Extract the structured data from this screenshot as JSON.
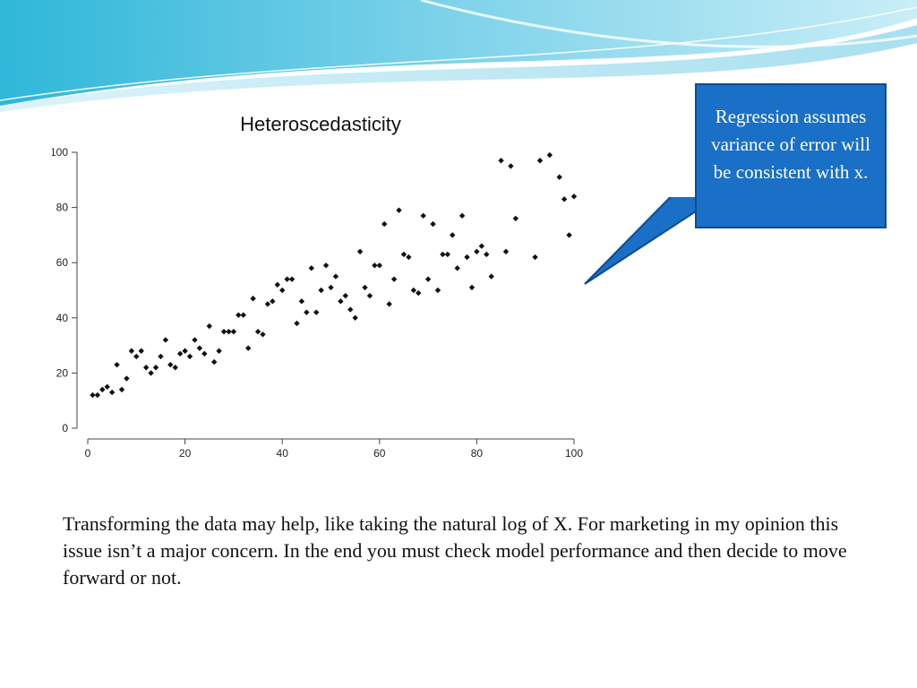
{
  "callout": {
    "text": "Regression assumes variance of error will be consistent with x.",
    "background": "#1a6fc6"
  },
  "body_text": "Transforming the data may help, like taking the natural log of X.  For marketing in my opinion this issue isn’t a major concern.  In the end you must check model performance and then decide to move forward or not.",
  "chart_data": {
    "type": "scatter",
    "title": "Heteroscedasticity",
    "xlabel": "",
    "ylabel": "",
    "xlim": [
      0,
      100
    ],
    "ylim": [
      0,
      100
    ],
    "x_ticks": [
      0,
      20,
      40,
      60,
      80,
      100
    ],
    "y_ticks": [
      0,
      20,
      40,
      60,
      80,
      100
    ],
    "grid": false,
    "marker_color": "#111111",
    "points": [
      [
        1,
        12
      ],
      [
        2,
        12
      ],
      [
        3,
        14
      ],
      [
        4,
        15
      ],
      [
        5,
        13
      ],
      [
        6,
        23
      ],
      [
        7,
        14
      ],
      [
        8,
        18
      ],
      [
        9,
        28
      ],
      [
        10,
        26
      ],
      [
        11,
        28
      ],
      [
        12,
        22
      ],
      [
        13,
        20
      ],
      [
        14,
        22
      ],
      [
        15,
        26
      ],
      [
        16,
        32
      ],
      [
        17,
        23
      ],
      [
        18,
        22
      ],
      [
        19,
        27
      ],
      [
        20,
        28
      ],
      [
        21,
        26
      ],
      [
        22,
        32
      ],
      [
        23,
        29
      ],
      [
        24,
        27
      ],
      [
        25,
        37
      ],
      [
        26,
        24
      ],
      [
        27,
        28
      ],
      [
        28,
        35
      ],
      [
        29,
        35
      ],
      [
        30,
        35
      ],
      [
        31,
        41
      ],
      [
        32,
        41
      ],
      [
        33,
        29
      ],
      [
        34,
        47
      ],
      [
        35,
        35
      ],
      [
        36,
        34
      ],
      [
        37,
        45
      ],
      [
        38,
        46
      ],
      [
        39,
        52
      ],
      [
        40,
        50
      ],
      [
        41,
        54
      ],
      [
        42,
        54
      ],
      [
        43,
        38
      ],
      [
        44,
        46
      ],
      [
        45,
        42
      ],
      [
        46,
        58
      ],
      [
        47,
        42
      ],
      [
        48,
        50
      ],
      [
        49,
        59
      ],
      [
        50,
        51
      ],
      [
        51,
        55
      ],
      [
        52,
        46
      ],
      [
        53,
        48
      ],
      [
        54,
        43
      ],
      [
        55,
        40
      ],
      [
        56,
        64
      ],
      [
        57,
        51
      ],
      [
        58,
        48
      ],
      [
        59,
        59
      ],
      [
        60,
        59
      ],
      [
        61,
        74
      ],
      [
        62,
        45
      ],
      [
        63,
        54
      ],
      [
        64,
        79
      ],
      [
        65,
        63
      ],
      [
        66,
        62
      ],
      [
        67,
        50
      ],
      [
        68,
        49
      ],
      [
        69,
        77
      ],
      [
        70,
        54
      ],
      [
        71,
        74
      ],
      [
        72,
        50
      ],
      [
        73,
        63
      ],
      [
        74,
        63
      ],
      [
        75,
        70
      ],
      [
        76,
        58
      ],
      [
        77,
        77
      ],
      [
        78,
        62
      ],
      [
        79,
        51
      ],
      [
        80,
        64
      ],
      [
        81,
        66
      ],
      [
        82,
        63
      ],
      [
        83,
        55
      ],
      [
        85,
        97
      ],
      [
        86,
        64
      ],
      [
        87,
        95
      ],
      [
        88,
        76
      ],
      [
        92,
        62
      ],
      [
        93,
        97
      ],
      [
        95,
        99
      ],
      [
        97,
        91
      ],
      [
        98,
        83
      ],
      [
        99,
        70
      ],
      [
        100,
        84
      ]
    ]
  }
}
